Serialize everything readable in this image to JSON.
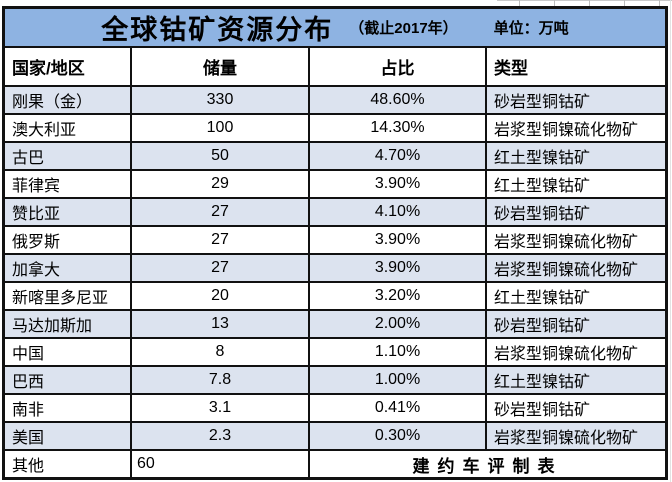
{
  "title_bar": {
    "title": "全球钴矿资源分布",
    "note": "（截止2017年）",
    "unit": "单位：万吨"
  },
  "chart_data": {
    "type": "table",
    "title": "全球钴矿资源分布",
    "subtitle": "截止2017年",
    "unit": "万吨",
    "columns": [
      "国家/地区",
      "储量",
      "占比",
      "类型"
    ],
    "rows": [
      {
        "country": "刚果（金）",
        "reserve": "330",
        "share": "48.60%",
        "type": "砂岩型铜钴矿"
      },
      {
        "country": "澳大利亚",
        "reserve": "100",
        "share": "14.30%",
        "type": "岩浆型铜镍硫化物矿"
      },
      {
        "country": "古巴",
        "reserve": "50",
        "share": "4.70%",
        "type": "红土型镍钴矿"
      },
      {
        "country": "菲律宾",
        "reserve": "29",
        "share": "3.90%",
        "type": "红土型镍钴矿"
      },
      {
        "country": "赞比亚",
        "reserve": "27",
        "share": "4.10%",
        "type": "砂岩型铜钴矿"
      },
      {
        "country": "俄罗斯",
        "reserve": "27",
        "share": "3.90%",
        "type": "岩浆型铜镍硫化物矿"
      },
      {
        "country": "加拿大",
        "reserve": "27",
        "share": "3.90%",
        "type": "岩浆型铜镍硫化物矿"
      },
      {
        "country": "新喀里多尼亚",
        "reserve": "20",
        "share": "3.20%",
        "type": "红土型镍钴矿"
      },
      {
        "country": "马达加斯加",
        "reserve": "13",
        "share": "2.00%",
        "type": "砂岩型铜钴矿"
      },
      {
        "country": "中国",
        "reserve": "8",
        "share": "1.10%",
        "type": "岩浆型铜镍硫化物矿"
      },
      {
        "country": "巴西",
        "reserve": "7.8",
        "share": "1.00%",
        "type": "红土型镍钴矿"
      },
      {
        "country": "南非",
        "reserve": "3.1",
        "share": "0.41%",
        "type": "砂岩型铜钴矿"
      },
      {
        "country": "美国",
        "reserve": "2.3",
        "share": "0.30%",
        "type": "岩浆型铜镍硫化物矿"
      }
    ],
    "footer_row": {
      "country": "其他",
      "reserve": "60",
      "credit": "建约车评制表"
    }
  },
  "colors": {
    "title_bg": "#8EB3E2",
    "stripe_bg": "#DCE3EF",
    "border_color": "#111111",
    "header_bg": "#FFFFFF"
  }
}
